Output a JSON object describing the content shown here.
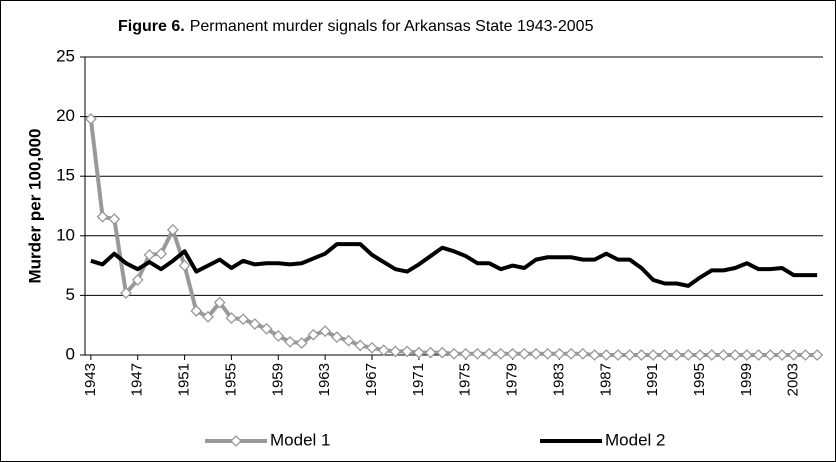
{
  "chart_data": {
    "type": "line",
    "title_bold": "Figure 6.",
    "title": "Permanent murder signals for Arkansas State 1943-2005",
    "y_label": "Murder per 100,000",
    "x": [
      1943,
      1944,
      1945,
      1946,
      1947,
      1948,
      1949,
      1950,
      1951,
      1952,
      1953,
      1954,
      1955,
      1956,
      1957,
      1958,
      1959,
      1960,
      1961,
      1962,
      1963,
      1964,
      1965,
      1966,
      1967,
      1968,
      1969,
      1970,
      1971,
      1972,
      1973,
      1974,
      1975,
      1976,
      1977,
      1978,
      1979,
      1980,
      1981,
      1982,
      1983,
      1984,
      1985,
      1986,
      1987,
      1988,
      1989,
      1990,
      1991,
      1992,
      1993,
      1994,
      1995,
      1996,
      1997,
      1998,
      1999,
      2000,
      2001,
      2002,
      2003,
      2004,
      2005
    ],
    "xlim": [
      1942.5,
      2005.5
    ],
    "xticks": [
      1943,
      1947,
      1951,
      1955,
      1959,
      1963,
      1967,
      1971,
      1975,
      1979,
      1983,
      1987,
      1991,
      1995,
      1999,
      2003
    ],
    "ylim": [
      0,
      25
    ],
    "yticks": [
      0,
      5,
      10,
      15,
      20,
      25
    ],
    "grid": true,
    "legend": "bottom",
    "series": [
      {
        "name": "Model 1",
        "color": "#999999",
        "marker": "diamond",
        "values": [
          19.8,
          11.6,
          11.4,
          5.2,
          6.3,
          8.4,
          8.5,
          10.5,
          7.5,
          3.7,
          3.2,
          4.4,
          3.1,
          3.0,
          2.6,
          2.2,
          1.6,
          1.1,
          1.0,
          1.7,
          2.0,
          1.5,
          1.2,
          0.8,
          0.6,
          0.4,
          0.3,
          0.3,
          0.2,
          0.2,
          0.2,
          0.1,
          0.1,
          0.1,
          0.1,
          0.1,
          0.1,
          0.1,
          0.1,
          0.1,
          0.1,
          0.1,
          0.1,
          0,
          0,
          0,
          0,
          0,
          0,
          0,
          0,
          0,
          0,
          0,
          0,
          0,
          0,
          0,
          0,
          0,
          0,
          0,
          0
        ]
      },
      {
        "name": "Model 2",
        "color": "#000000",
        "values": [
          7.9,
          7.6,
          8.5,
          7.7,
          7.2,
          7.8,
          7.2,
          7.9,
          8.7,
          7.0,
          7.5,
          8.0,
          7.3,
          7.9,
          7.6,
          7.7,
          7.7,
          7.6,
          7.7,
          8.1,
          8.5,
          9.3,
          9.3,
          9.3,
          8.4,
          7.8,
          7.2,
          7.0,
          7.6,
          8.3,
          9.0,
          8.7,
          8.3,
          7.7,
          7.7,
          7.2,
          7.5,
          7.3,
          8.0,
          8.2,
          8.2,
          8.2,
          8.0,
          8.0,
          8.5,
          8.0,
          8.0,
          7.3,
          6.3,
          6.0,
          6.0,
          5.8,
          6.5,
          7.1,
          7.1,
          7.3,
          7.7,
          7.2,
          7.2,
          7.3,
          6.7,
          6.7,
          6.7
        ]
      }
    ]
  }
}
